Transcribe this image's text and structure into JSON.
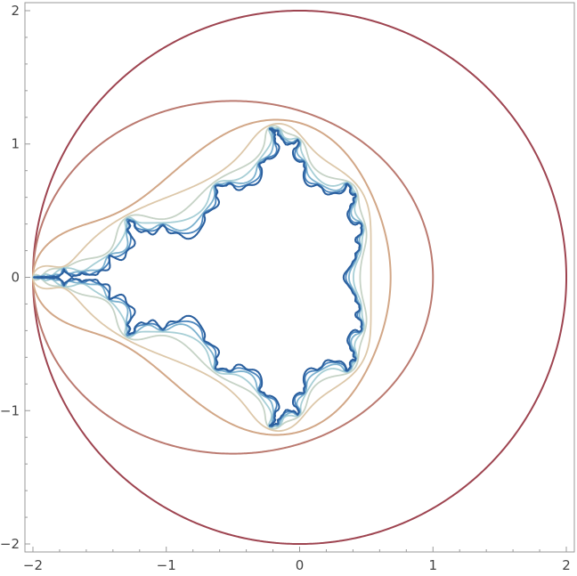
{
  "chart_data": {
    "type": "line",
    "title": "",
    "xlabel": "",
    "ylabel": "",
    "xlim": [
      -2.06,
      2.06
    ],
    "ylim": [
      -2.06,
      2.06
    ],
    "aspect": "equal",
    "grid": false,
    "legend": "none",
    "x_ticks": [
      {
        "value": -2,
        "label": "−2"
      },
      {
        "value": -1,
        "label": "−1"
      },
      {
        "value": 0,
        "label": "0"
      },
      {
        "value": 1,
        "label": "1"
      },
      {
        "value": 2,
        "label": "2"
      }
    ],
    "y_ticks": [
      {
        "value": 2,
        "label": "2"
      },
      {
        "value": 1,
        "label": "1"
      },
      {
        "value": 0,
        "label": "0"
      },
      {
        "value": -1,
        "label": "−1"
      },
      {
        "value": -2,
        "label": "−2"
      }
    ],
    "curve_family": "Mandelbrot lemniscates |P_n(c)| = 2, n = 1 to 9",
    "series": [
      {
        "iteration": 1,
        "color": "#9e4450",
        "width": 2.0
      },
      {
        "iteration": 2,
        "color": "#bb7a70",
        "width": 2.0
      },
      {
        "iteration": 3,
        "color": "#d2a787",
        "width": 2.0
      },
      {
        "iteration": 4,
        "color": "#ddc8aa",
        "width": 1.8
      },
      {
        "iteration": 5,
        "color": "#c6d3c6",
        "width": 1.8
      },
      {
        "iteration": 6,
        "color": "#a8cfd6",
        "width": 1.8
      },
      {
        "iteration": 7,
        "color": "#7db2cf",
        "width": 1.8
      },
      {
        "iteration": 8,
        "color": "#4a85bd",
        "width": 1.8
      },
      {
        "iteration": 9,
        "color": "#2a5f9e",
        "width": 2.0
      }
    ]
  }
}
